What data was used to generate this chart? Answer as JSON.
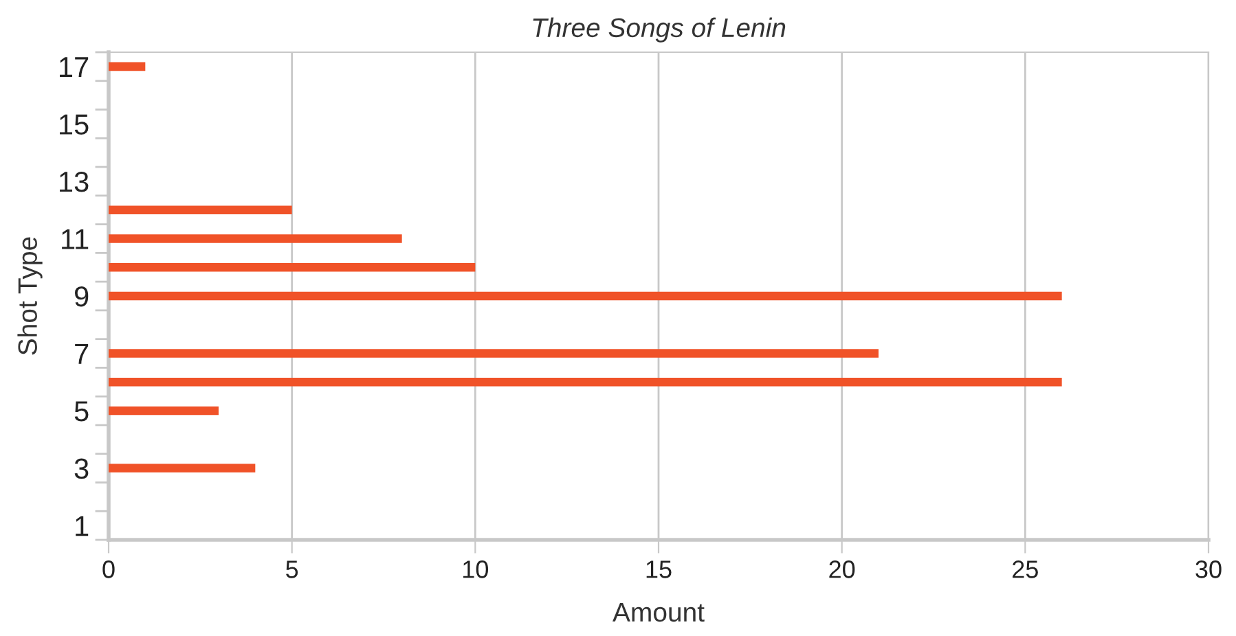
{
  "chart_data": {
    "type": "bar",
    "orientation": "horizontal",
    "title": "Three Songs of Lenin",
    "xlabel": "Amount",
    "ylabel": "Shot Type",
    "categories": [
      "17",
      null,
      "15",
      null,
      "13",
      null,
      "11",
      null,
      "9",
      null,
      "7",
      null,
      "5",
      null,
      "3",
      null,
      "1"
    ],
    "values": [
      1,
      null,
      null,
      null,
      null,
      5,
      8,
      10,
      26,
      null,
      21,
      26,
      3,
      null,
      4,
      null,
      null
    ],
    "color": "#f05228",
    "xlim": [
      0,
      30
    ],
    "xticks": [
      0,
      5,
      10,
      15,
      20,
      25,
      30
    ],
    "grid": "x"
  }
}
